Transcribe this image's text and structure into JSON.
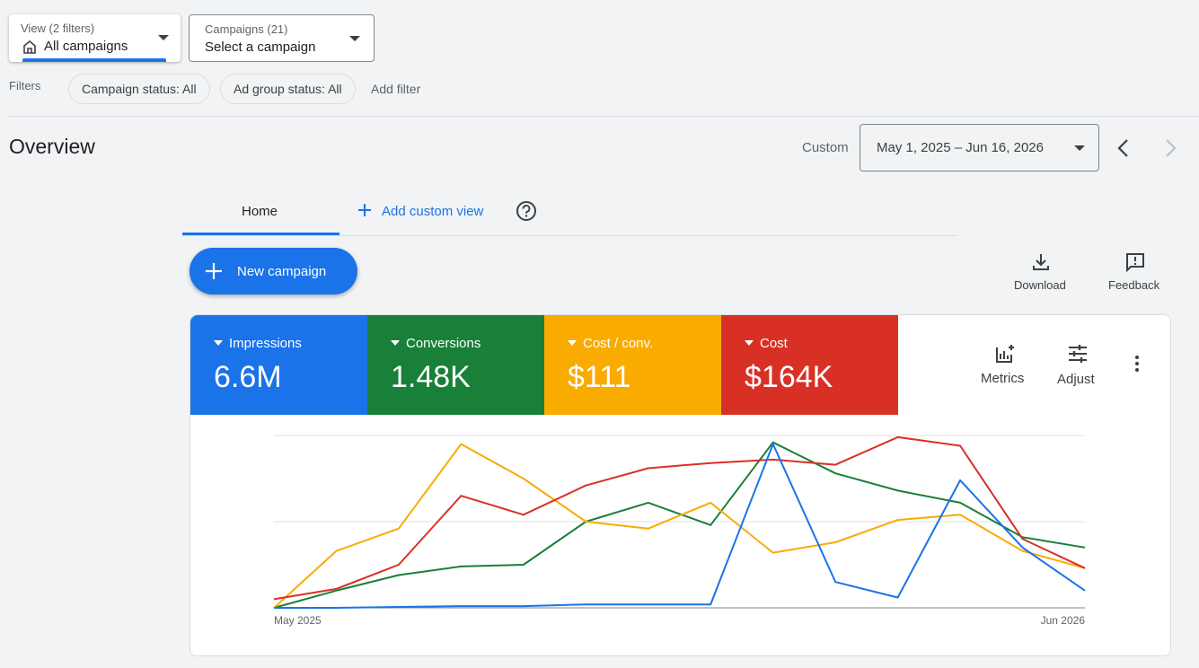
{
  "header": {
    "view_label": "View (2 filters)",
    "view_value": "All campaigns",
    "campaigns_label": "Campaigns (21)",
    "campaigns_value": "Select a campaign"
  },
  "filters": {
    "label": "Filters",
    "chips": [
      "Campaign status: All",
      "Ad group status: All"
    ],
    "add": "Add filter"
  },
  "overview": {
    "title": "Overview",
    "range_label": "Custom",
    "date_range": "May 1, 2025 – Jun 16, 2026"
  },
  "tabs": {
    "home": "Home",
    "add": "Add custom view"
  },
  "actions": {
    "new_campaign": "New campaign",
    "download": "Download",
    "feedback": "Feedback",
    "metrics": "Metrics",
    "adjust": "Adjust"
  },
  "chart_data": {
    "type": "line",
    "categories": [
      "May 2025",
      null,
      null,
      null,
      null,
      null,
      null,
      null,
      null,
      null,
      null,
      null,
      null,
      "Jun 2026"
    ],
    "ylim": [
      0,
      100
    ],
    "ygrid": [
      0,
      50,
      100
    ],
    "series": [
      {
        "name": "Impressions",
        "total": "6.6M",
        "color": "#1a73e8",
        "values": [
          0,
          0,
          0.5,
          1,
          1,
          2,
          2,
          2,
          95,
          15,
          6,
          74,
          35,
          10
        ]
      },
      {
        "name": "Conversions",
        "total": "1.48K",
        "color": "#188038",
        "values": [
          0,
          10,
          19,
          24,
          25,
          50,
          61,
          48,
          96,
          78,
          68,
          61,
          41,
          35
        ]
      },
      {
        "name": "Cost / conv.",
        "total": "$111",
        "color": "#f9ab00",
        "values": [
          0,
          33,
          46,
          95,
          75,
          50,
          46,
          61,
          32,
          38,
          51,
          54,
          33,
          23
        ]
      },
      {
        "name": "Cost",
        "total": "$164K",
        "color": "#d93025",
        "values": [
          5,
          11,
          25,
          65,
          54,
          71,
          81,
          84,
          86,
          83,
          99,
          94,
          40,
          23
        ]
      }
    ]
  }
}
